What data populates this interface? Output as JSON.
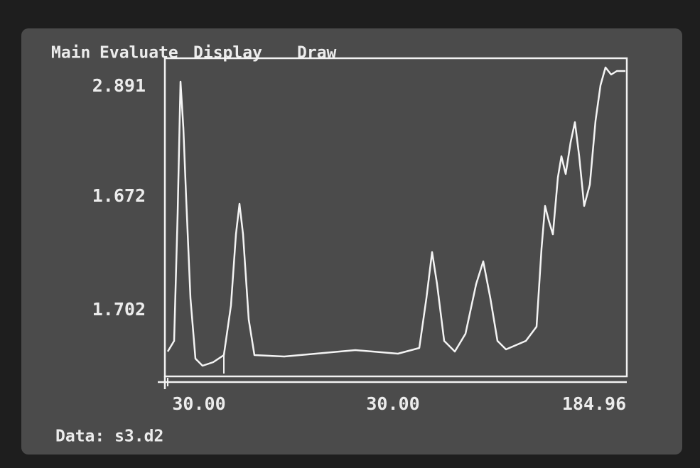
{
  "menu": [
    "Main",
    "Evaluate",
    "Display",
    "Draw"
  ],
  "y_labels": [
    "2.891",
    "1.672",
    "1.702"
  ],
  "x_labels": [
    "30.00",
    "30.00",
    "184.96"
  ],
  "status": "Data: s3.d2"
}
